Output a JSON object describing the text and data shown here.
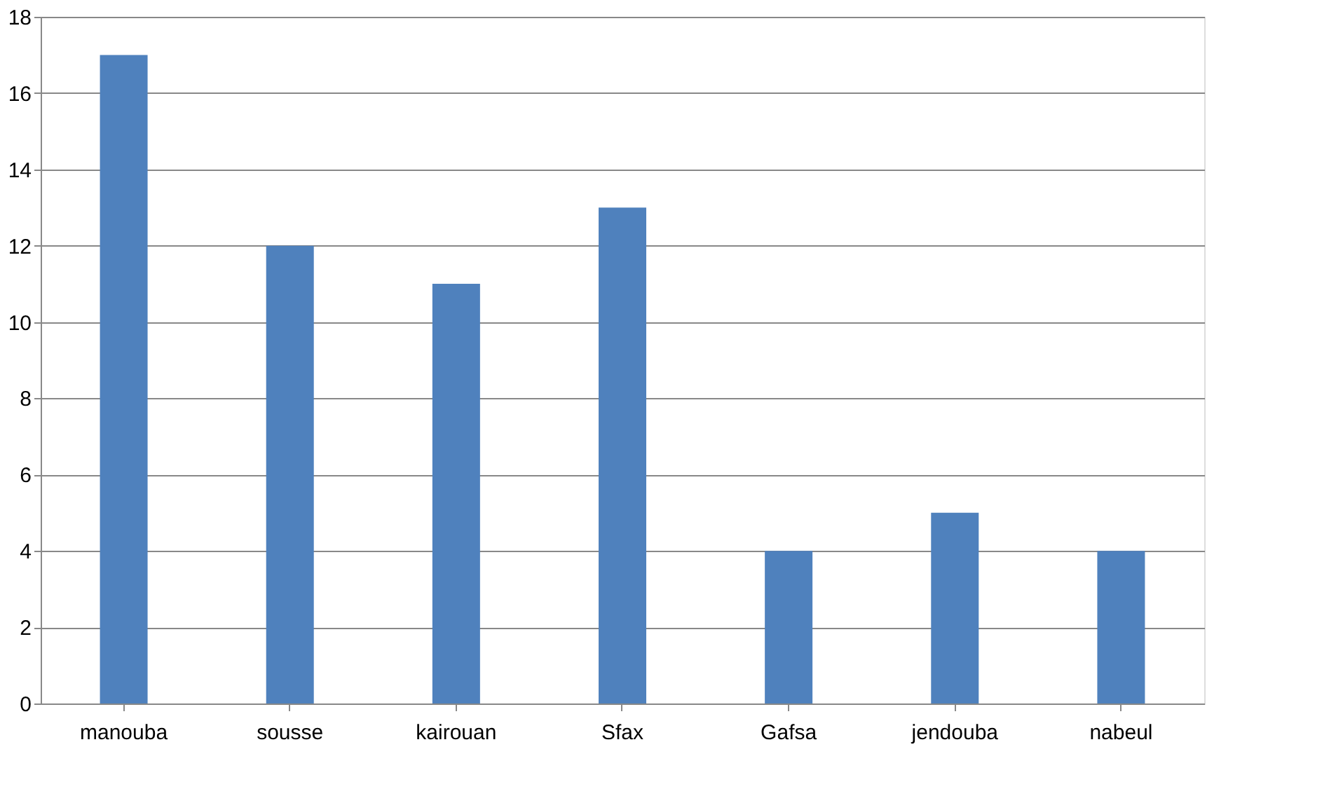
{
  "chart_data": {
    "type": "bar",
    "categories": [
      "manouba",
      "sousse",
      "kairouan",
      "Sfax",
      "Gafsa",
      "jendouba",
      "nabeul"
    ],
    "values": [
      17,
      12,
      11,
      13,
      4,
      5,
      4
    ],
    "color": "#4f81bd",
    "ylim": [
      0,
      18
    ],
    "yticks": [
      0,
      2,
      4,
      6,
      8,
      10,
      12,
      14,
      16,
      18
    ],
    "grid": "y"
  }
}
